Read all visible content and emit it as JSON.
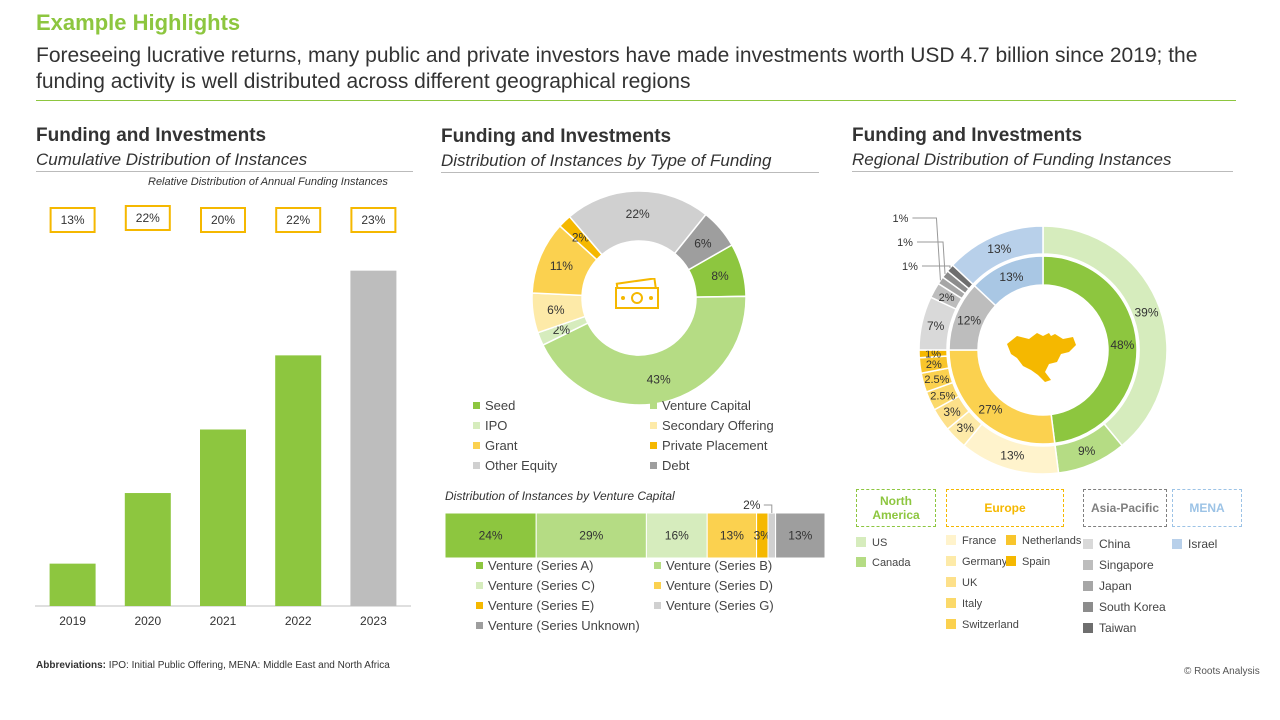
{
  "header": {
    "title": "Example Highlights",
    "subtitle": "Foreseeing lucrative returns, many public and private investors have made investments worth USD 4.7 billion since 2019; the funding activity is well distributed across different geographical regions"
  },
  "panels": {
    "left": {
      "heading": "Funding and Investments",
      "subheading": "Cumulative Distribution of Instances",
      "note": "Relative Distribution of Annual Funding Instances"
    },
    "middle": {
      "heading": "Funding and Investments",
      "subheading": "Distribution of Instances by Type of Funding",
      "vc_title": "Distribution of Instances by Venture Capital"
    },
    "right": {
      "heading": "Funding and Investments",
      "subheading": "Regional Distribution of Funding Instances"
    }
  },
  "footer": {
    "abbr_label": "Abbreviations:",
    "abbr_text": "IPO: Initial Public Offering, MENA: Middle East and North Africa",
    "copyright": "© Roots Analysis"
  },
  "icons": {
    "money": "money-bill-icon",
    "map": "north-america-map-icon"
  },
  "colors": {
    "accent_green": "#8dc63f",
    "accent_yellow": "#f5b800",
    "grey": "#bdbdbd"
  },
  "chart_data": [
    {
      "type": "bar",
      "categories": [
        "2019",
        "2020",
        "2021",
        "2022",
        "2023"
      ],
      "values": [
        12,
        32,
        50,
        71,
        95
      ],
      "annual_share_labels": [
        "13%",
        "22%",
        "20%",
        "22%",
        "23%"
      ],
      "bar_colors": [
        "#8dc63f",
        "#8dc63f",
        "#8dc63f",
        "#8dc63f",
        "#bdbdbd"
      ],
      "ylim": [
        0,
        100
      ],
      "grid": false
    },
    {
      "type": "pie",
      "subtype": "donut",
      "slices": [
        {
          "name": "Seed",
          "value": 8,
          "label": "8%",
          "color": "#8dc63f"
        },
        {
          "name": "Venture Capital",
          "value": 43,
          "label": "43%",
          "color": "#b5dc84"
        },
        {
          "name": "IPO",
          "value": 2,
          "label": "2%",
          "color": "#d6ecbd"
        },
        {
          "name": "Secondary Offering",
          "value": 6,
          "label": "6%",
          "color": "#fdeaa8"
        },
        {
          "name": "Grant",
          "value": 11,
          "label": "11%",
          "color": "#fbd14f"
        },
        {
          "name": "Private Placement",
          "value": 2,
          "label": "2%",
          "color": "#f5b800"
        },
        {
          "name": "Other Equity",
          "value": 22,
          "label": "22%",
          "color": "#d0d0d0"
        },
        {
          "name": "Debt",
          "value": 6,
          "label": "6%",
          "color": "#9e9e9e"
        }
      ],
      "legend_placement": "bottom"
    },
    {
      "type": "bar",
      "subtype": "stacked-100",
      "segments": [
        {
          "name": "Venture (Series A)",
          "value": 24,
          "label": "24%",
          "color": "#8dc63f"
        },
        {
          "name": "Venture (Series B)",
          "value": 29,
          "label": "29%",
          "color": "#b5dc84"
        },
        {
          "name": "Venture (Series C)",
          "value": 16,
          "label": "16%",
          "color": "#d6ecbd"
        },
        {
          "name": "Venture (Series D)",
          "value": 13,
          "label": "13%",
          "color": "#fbd14f"
        },
        {
          "name": "Venture (Series E)",
          "value": 3,
          "label": "3%",
          "color": "#f5b800"
        },
        {
          "name": "Venture (Series G)",
          "value": 2,
          "label": "2%",
          "color": "#d0d0d0"
        },
        {
          "name": "Venture (Series Unknown)",
          "value": 13,
          "label": "13%",
          "color": "#9e9e9e"
        }
      ],
      "legend_placement": "bottom"
    },
    {
      "type": "pie",
      "subtype": "nested-donut",
      "inner_ring": [
        {
          "name": "North America",
          "value": 48,
          "label": "48%",
          "color": "#8dc63f"
        },
        {
          "name": "Europe",
          "value": 27,
          "label": "27%",
          "color": "#fbd14f"
        },
        {
          "name": "Asia-Pacific",
          "value": 12,
          "label": "12%",
          "color": "#bdbdbd"
        },
        {
          "name": "MENA",
          "value": 13,
          "label": "13%",
          "color": "#a9c7e4"
        }
      ],
      "outer_ring": [
        {
          "name": "US",
          "value": 39,
          "label": "39%",
          "color": "#d6ecbd"
        },
        {
          "name": "Canada",
          "value": 9,
          "label": "9%",
          "color": "#b5dc84"
        },
        {
          "name": "France",
          "value": 13,
          "label": "13%",
          "color": "#fff3cc"
        },
        {
          "name": "Germany",
          "value": 3,
          "label": "3%",
          "color": "#fdeaa8"
        },
        {
          "name": "UK",
          "value": 3,
          "label": "3%",
          "color": "#fde08a"
        },
        {
          "name": "Italy",
          "value": 2.5,
          "label": "2.5%",
          "color": "#fbd96a"
        },
        {
          "name": "Switzerland",
          "value": 2.5,
          "label": "2.5%",
          "color": "#fbd14f"
        },
        {
          "name": "Netherlands",
          "value": 2,
          "label": "2%",
          "color": "#f8c52c"
        },
        {
          "name": "Spain",
          "value": 1,
          "label": "1%",
          "color": "#f5b800"
        },
        {
          "name": "China",
          "value": 7,
          "label": "7%",
          "color": "#d9d9d9"
        },
        {
          "name": "Singapore",
          "value": 2,
          "label": "2%",
          "color": "#bdbdbd"
        },
        {
          "name": "Japan",
          "value": 1,
          "label": "1%",
          "color": "#a6a6a6"
        },
        {
          "name": "South Korea",
          "value": 1,
          "label": "1%",
          "color": "#8c8c8c"
        },
        {
          "name": "Taiwan",
          "value": 1,
          "label": "1%",
          "color": "#6e6e6e"
        },
        {
          "name": "Israel",
          "value": 13,
          "label": "13%",
          "color": "#b8d0ea"
        }
      ],
      "region_groups": [
        {
          "title": "North America",
          "color": "#8dc63f",
          "items": [
            "US",
            "Canada"
          ]
        },
        {
          "title": "Europe",
          "color": "#f5b800",
          "items": [
            "France",
            "Germany",
            "UK",
            "Italy",
            "Switzerland",
            "Netherlands",
            "Spain"
          ]
        },
        {
          "title": "Asia-Pacific",
          "color": "#7f7f7f",
          "items": [
            "China",
            "Singapore",
            "Japan",
            "South Korea",
            "Taiwan"
          ]
        },
        {
          "title": "MENA",
          "color": "#9cc3e6",
          "items": [
            "Israel"
          ]
        }
      ]
    }
  ]
}
